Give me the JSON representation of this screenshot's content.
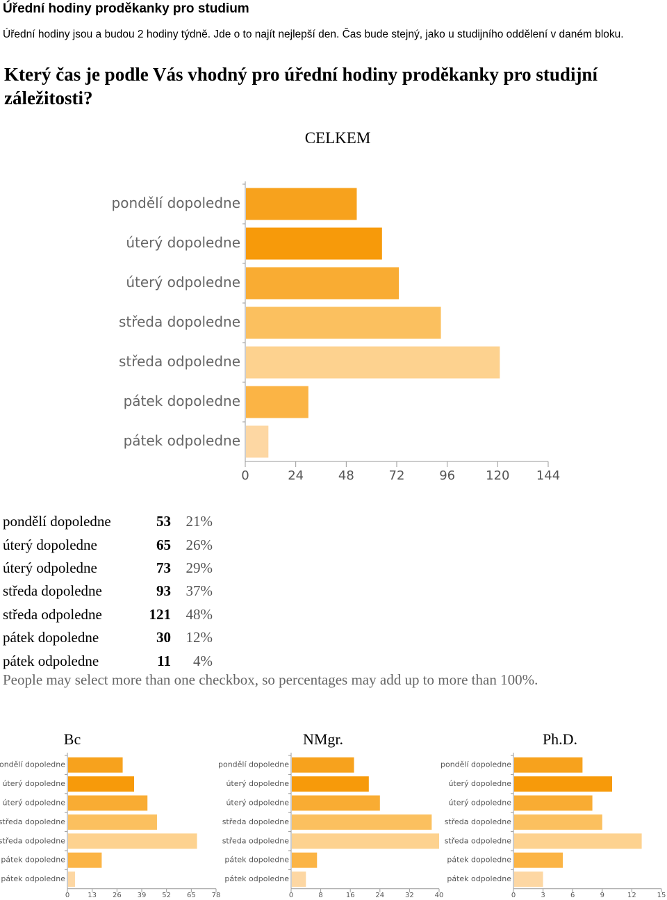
{
  "page": {
    "title": "Úřední hodiny proděkanky pro studium",
    "intro": "Úřední hodiny jsou a budou 2 hodiny týdně. Jde o to najít nejlepší den. Čas bude stejný, jako u studijního oddělení v daném bloku.",
    "question": "Který čas je podle Vás vhodný pro úřední hodiny proděkanky pro studijní záležitosti?"
  },
  "colors": [
    "#f7a21d",
    "#f79a0a",
    "#f9ac33",
    "#fbc05f",
    "#fdd28f",
    "#fbb445",
    "#fdd7a3"
  ],
  "chart_data": [
    {
      "type": "bar",
      "title": "CELKEM",
      "orientation": "horizontal",
      "categories": [
        "pondělí dopoledne",
        "úterý dopoledne",
        "úterý odpoledne",
        "středa dopoledne",
        "středa odpoledne",
        "pátek dopoledne",
        "pátek odpoledne"
      ],
      "values": [
        53,
        65,
        73,
        93,
        121,
        30,
        11
      ],
      "percentages": [
        "21%",
        "26%",
        "29%",
        "37%",
        "48%",
        "12%",
        "4%"
      ],
      "xlim": [
        0,
        144
      ],
      "xticks": [
        0,
        24,
        48,
        72,
        96,
        120,
        144
      ],
      "note": "People may select more than one checkbox, so percentages may add up to more than 100%."
    },
    {
      "type": "bar",
      "title": "Bc",
      "orientation": "horizontal",
      "categories": [
        "pondělí dopoledne",
        "úterý dopoledne",
        "úterý odpoledne",
        "středa dopoledne",
        "středa odpoledne",
        "pátek dopoledne",
        "pátek odpoledne"
      ],
      "values": [
        29,
        35,
        42,
        47,
        68,
        18,
        4
      ],
      "xlim": [
        0,
        78
      ],
      "xticks": [
        0,
        13,
        26,
        39,
        52,
        65,
        78
      ]
    },
    {
      "type": "bar",
      "title": "NMgr.",
      "orientation": "horizontal",
      "categories": [
        "pondělí dopoledne",
        "úterý dopoledne",
        "úterý odpoledne",
        "středa dopoledne",
        "středa odpoledne",
        "pátek dopoledne",
        "pátek odpoledne"
      ],
      "values": [
        17,
        21,
        24,
        38,
        40,
        7,
        4
      ],
      "xlim": [
        0,
        40
      ],
      "xticks": [
        0,
        8,
        16,
        24,
        32,
        40
      ]
    },
    {
      "type": "bar",
      "title": "Ph.D.",
      "orientation": "horizontal",
      "categories": [
        "pondělí dopoledne",
        "úterý dopoledne",
        "úterý odpoledne",
        "středa dopoledne",
        "středa odpoledne",
        "pátek dopoledne",
        "pátek odpoledne"
      ],
      "values": [
        7,
        10,
        8,
        9,
        13,
        5,
        3
      ],
      "xlim": [
        0,
        15
      ],
      "xticks": [
        0,
        3,
        6,
        9,
        12,
        15
      ]
    }
  ]
}
